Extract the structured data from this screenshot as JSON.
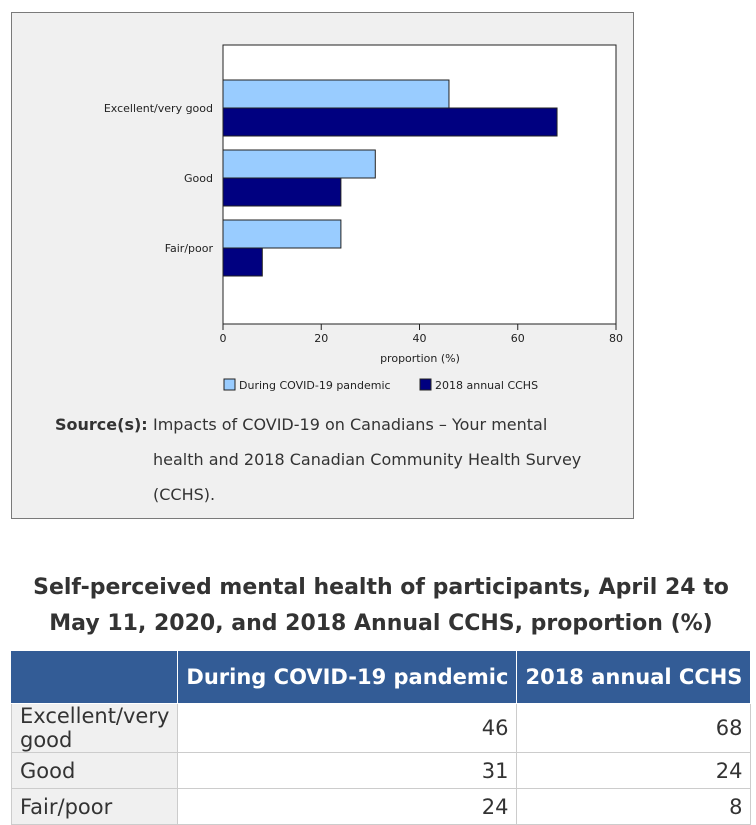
{
  "chart_data": {
    "type": "bar",
    "orientation": "horizontal",
    "categories": [
      "Excellent/very good",
      "Good",
      "Fair/poor"
    ],
    "series": [
      {
        "name": "During COVID-19 pandemic",
        "values": [
          46,
          31,
          24
        ],
        "color": "#99ccff"
      },
      {
        "name": "2018 annual CCHS",
        "values": [
          68,
          24,
          8
        ],
        "color": "#000080"
      }
    ],
    "xlabel": "proportion (%)",
    "xlim": [
      0,
      80
    ],
    "xticks": [
      0,
      20,
      40,
      60,
      80
    ],
    "grid": false,
    "legend_position": "bottom"
  },
  "source": {
    "label": "Source(s):",
    "text": "Impacts of COVID-19 on Canadians – Your mental health and 2018 Canadian Community Health Survey (CCHS)."
  },
  "table": {
    "title": "Self-perceived mental health of participants, April 24 to May 11, 2020, and 2018 Annual CCHS, proportion (%)",
    "columns": [
      "",
      "During COVID-19 pandemic",
      "2018 annual CCHS"
    ],
    "rows": [
      {
        "label": "Excellent/very good",
        "values": [
          "46",
          "68"
        ]
      },
      {
        "label": "Good",
        "values": [
          "31",
          "24"
        ]
      },
      {
        "label": "Fair/poor",
        "values": [
          "24",
          "8"
        ]
      }
    ]
  }
}
